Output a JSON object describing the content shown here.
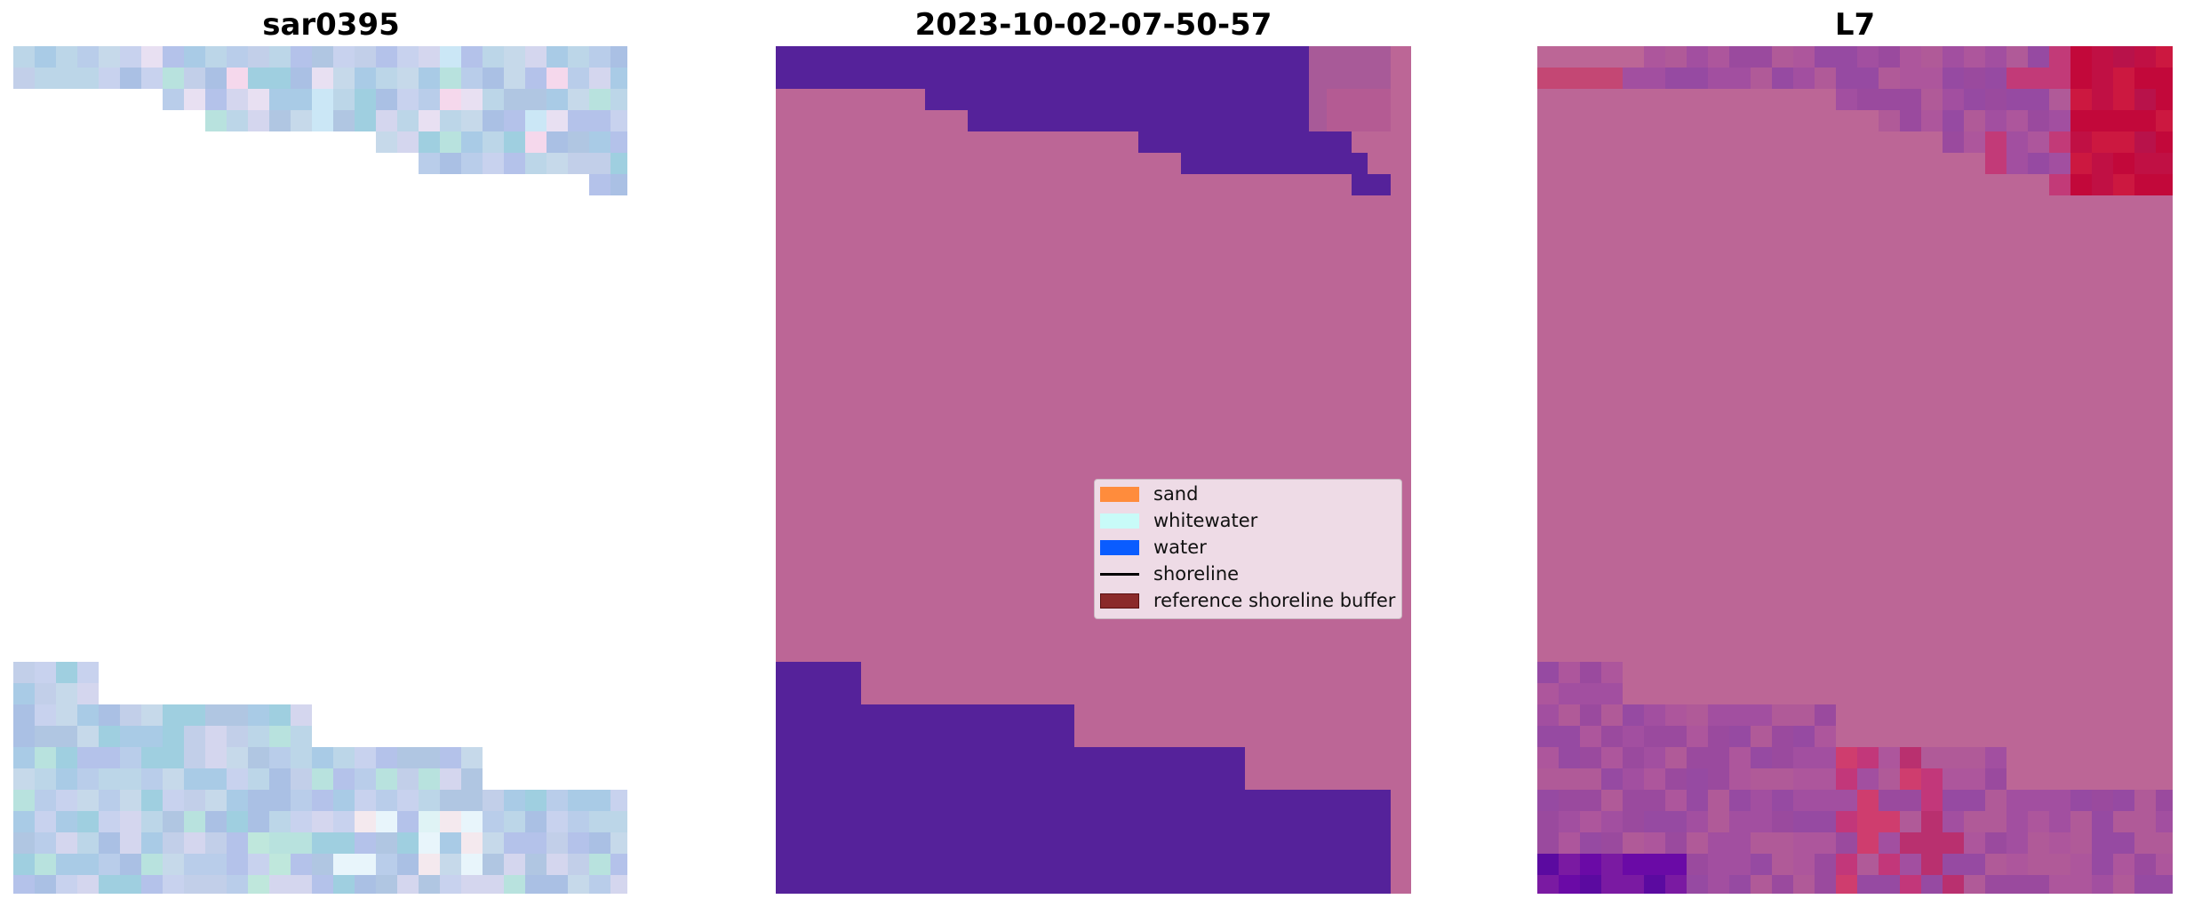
{
  "panels": [
    {
      "title": "sar0395",
      "kind": "sar-image"
    },
    {
      "title": "2023-10-02-07-50-57",
      "kind": "classification"
    },
    {
      "title": "L7",
      "kind": "probability"
    }
  ],
  "legend": [
    {
      "label": "sand",
      "color": "#ff8c3c",
      "type": "patch"
    },
    {
      "label": "whitewater",
      "color": "#c8fbf8",
      "type": "patch"
    },
    {
      "label": "water",
      "color": "#0a5cff",
      "type": "patch"
    },
    {
      "label": "shoreline",
      "color": "#000000",
      "type": "line"
    },
    {
      "label": "reference shoreline buffer",
      "color": "#8b2a2a",
      "type": "patch",
      "edge": "#5a1010"
    }
  ],
  "colors": {
    "overlay_pink": "#bc6696",
    "dark_purple": "#55229a",
    "magenta_mid": "#9a4a9e",
    "crimson": "#c2083a"
  }
}
